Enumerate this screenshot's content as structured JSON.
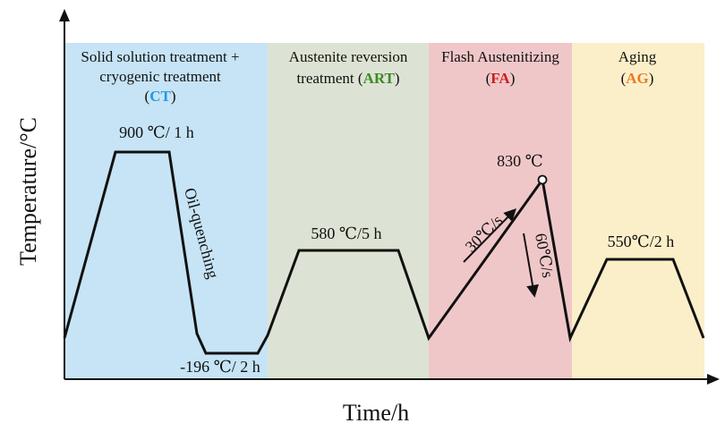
{
  "axes": {
    "x_label": "Time/h",
    "y_label": "Temperature/°C"
  },
  "stages": [
    {
      "name": "CT",
      "lines": [
        "Solid solution treatment +",
        "cryogenic treatment"
      ],
      "abbr": "CT",
      "bg": "#c6e4f6",
      "abbr_color": "#1e9be0"
    },
    {
      "name": "ART",
      "lines": [
        "Austenite reversion",
        "treatment"
      ],
      "abbr": "ART",
      "bg": "#dde3d4",
      "abbr_color": "#3c8a26"
    },
    {
      "name": "FA",
      "lines": [
        "Flash Austenitizing"
      ],
      "abbr": "FA",
      "bg": "#f0c7c9",
      "abbr_color": "#cc1f1f"
    },
    {
      "name": "AG",
      "lines": [
        "Aging"
      ],
      "abbr": "AG",
      "bg": "#fbefc9",
      "abbr_color": "#ea7a24"
    }
  ],
  "annotations": {
    "ct_hold": "900 ℃/ 1 h",
    "quench": "Oil-quenching",
    "cryo_hold": "-196 ℃/ 2 h",
    "art_hold": "580 ℃/5 h",
    "fa_peak": "830 ℃",
    "heating_rate": "30℃/s",
    "cooling_rate": "60℃/s",
    "ag_hold": "550℃/2 h"
  },
  "colors": {
    "curve": "#111111",
    "axis": "#111111"
  }
}
